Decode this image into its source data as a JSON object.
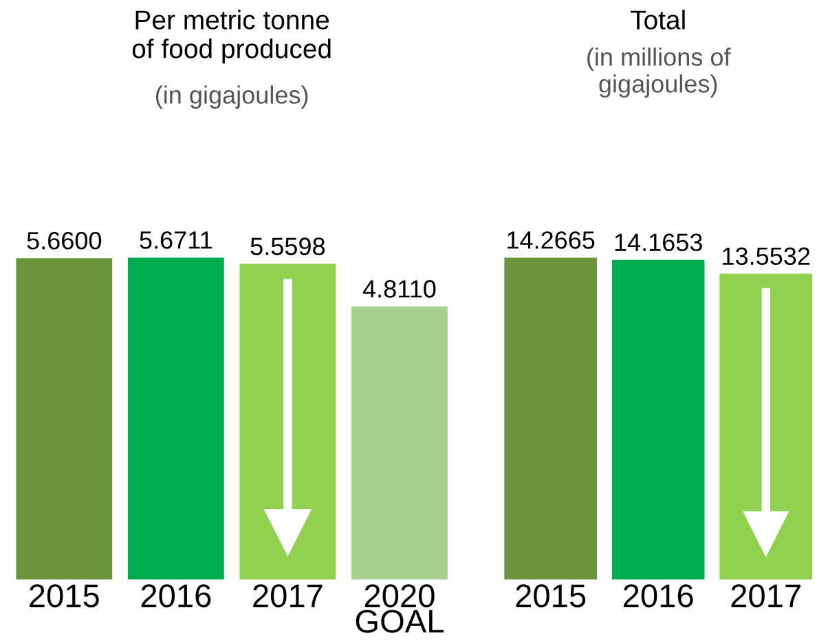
{
  "chart_data": [
    {
      "type": "bar",
      "title": "Per metric tonne\nof food produced",
      "subtitle": "(in gigajoules)",
      "categories": [
        "2015",
        "2016",
        "2017",
        "2020\nGOAL"
      ],
      "values": [
        5.66,
        5.6711,
        5.5598,
        4.811
      ],
      "value_labels": [
        "5.6600",
        "5.6711",
        "5.5598",
        "4.8110"
      ],
      "colors": [
        "#6b953a",
        "#00ad4e",
        "#92d050",
        "#a9d18e"
      ],
      "grid": false,
      "legend": false
    },
    {
      "type": "bar",
      "title": "Total",
      "subtitle": "(in millions of\ngigajoules)",
      "categories": [
        "2015",
        "2016",
        "2017"
      ],
      "values": [
        14.2665,
        14.1653,
        13.5532
      ],
      "value_labels": [
        "14.2665",
        "14.1653",
        "13.5532"
      ],
      "colors": [
        "#6b953a",
        "#00ad4e",
        "#92d050"
      ],
      "grid": false,
      "legend": false
    }
  ]
}
